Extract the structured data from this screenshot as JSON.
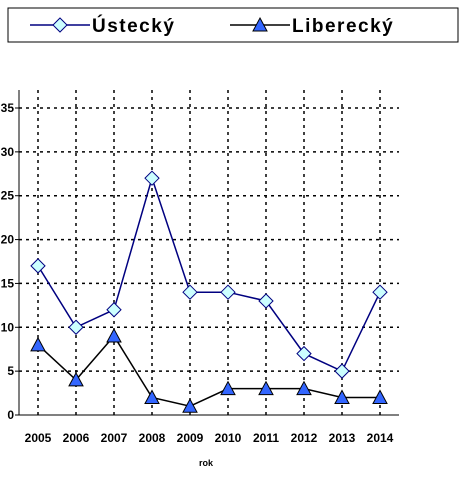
{
  "chart_data": {
    "type": "line",
    "x_label": "rok",
    "categories": [
      "2005",
      "2006",
      "2007",
      "2008",
      "2009",
      "2010",
      "2011",
      "2012",
      "2013",
      "2014"
    ],
    "series": [
      {
        "name": "Ústecký",
        "color": "#000080",
        "marker": "diamond",
        "marker_color": "#ccffff",
        "values": [
          17,
          10,
          12,
          27,
          14,
          14,
          13,
          7,
          5,
          14
        ]
      },
      {
        "name": "Liberecký",
        "color": "#000000",
        "marker": "triangle",
        "marker_color": "#3366ff",
        "values": [
          8,
          4,
          9,
          2,
          1,
          3,
          3,
          3,
          2,
          2
        ]
      }
    ],
    "ylim": [
      0,
      35
    ],
    "yticks": [
      0,
      5,
      10,
      15,
      20,
      25,
      30,
      35
    ],
    "grid": true,
    "legend": "top"
  }
}
